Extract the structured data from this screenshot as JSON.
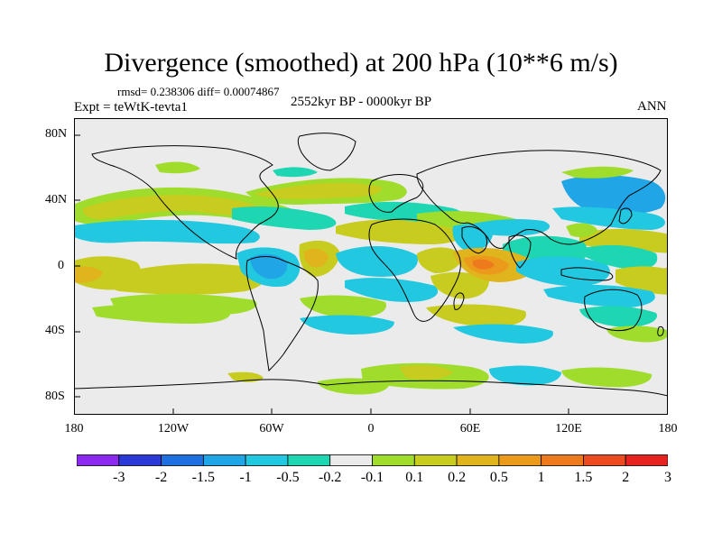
{
  "title": "Divergence (smoothed) at 200 hPa (10**6 m/s)",
  "stats_text": "rmsd= 0.238306 diff= 0.00074867",
  "experiment_text": "Expt = teWtK-tevta1",
  "period_text": "2552kyr BP - 0000kyr BP",
  "season_text": "ANN",
  "axes": {
    "y_ticks": [
      "80N",
      "40N",
      "0",
      "40S",
      "80S"
    ],
    "x_ticks": [
      "180",
      "120W",
      "60W",
      "0",
      "60E",
      "120E",
      "180"
    ]
  },
  "colorbar": {
    "colors": [
      "#8c2af0",
      "#2b3ad6",
      "#1f6fe0",
      "#20a5e6",
      "#22c8e0",
      "#1ed6b2",
      "#ebebeb",
      "#9fdc2b",
      "#c8cc1e",
      "#e0b41c",
      "#ec9a1c",
      "#ee7a1e",
      "#ec4a20",
      "#e6231e"
    ],
    "labels": [
      "-3",
      "-2",
      "-1.5",
      "-1",
      "-0.5",
      "-0.2",
      "-0.1",
      "0.1",
      "0.2",
      "0.5",
      "1",
      "1.5",
      "2",
      "3"
    ]
  },
  "chart_data": {
    "type": "heatmap",
    "title": "Divergence (smoothed) at 200 hPa (10**6 m/s)",
    "units": "10**6 m/s",
    "lon_range": [
      -180,
      180
    ],
    "lat_range": [
      -90,
      90
    ],
    "levels": [
      -3,
      -2,
      -1.5,
      -1,
      -0.5,
      -0.2,
      -0.1,
      0.1,
      0.2,
      0.5,
      1,
      1.5,
      2,
      3
    ],
    "features": [
      {
        "region": "Indian Ocean near 60E, Equator",
        "lon": 70,
        "lat": 0,
        "value": 1.5
      },
      {
        "region": "Eastern tropical Indian Ocean",
        "lon": 90,
        "lat": -5,
        "value": -0.5
      },
      {
        "region": "West Pacific",
        "lon": 150,
        "lat": 10,
        "value": -0.5
      },
      {
        "region": "East Pacific near dateline",
        "lon": -170,
        "lat": -5,
        "value": 0.5
      },
      {
        "region": "Central Pacific",
        "lon": -130,
        "lat": -15,
        "value": 0.3
      },
      {
        "region": "Amazon",
        "lon": -60,
        "lat": 0,
        "value": -0.5
      },
      {
        "region": "Tropical Atlantic",
        "lon": -30,
        "lat": 5,
        "value": 0.3
      },
      {
        "region": "North Atlantic",
        "lon": -60,
        "lat": 35,
        "value": 0.3
      },
      {
        "region": "North Pacific",
        "lon": -130,
        "lat": 35,
        "value": 0.3
      },
      {
        "region": "Southern Ocean",
        "lon": 20,
        "lat": -65,
        "value": 0.3
      }
    ]
  }
}
